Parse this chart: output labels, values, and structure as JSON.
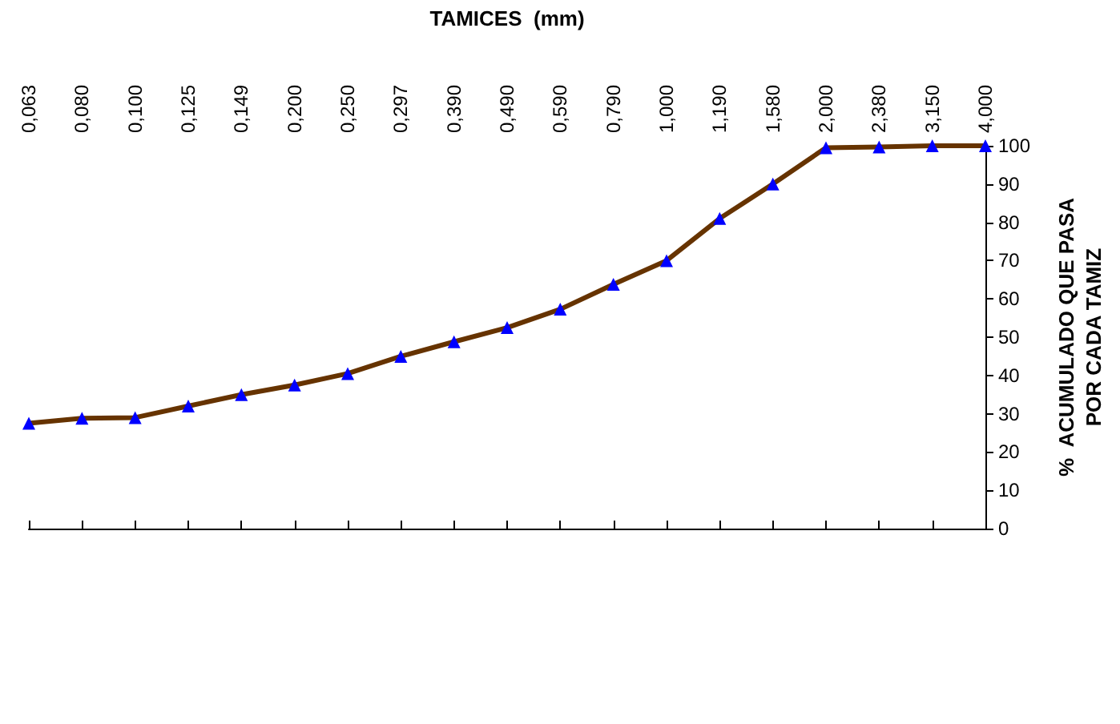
{
  "chart_data": {
    "type": "line",
    "xlabel": "TAMICES  (mm)",
    "ylabel": "%  ACUMULADO QUE PASA\nPOR CADA TAMIZ",
    "categories": [
      "0,063",
      "0,080",
      "0,100",
      "0,125",
      "0,149",
      "0,200",
      "0,250",
      "0,297",
      "0,390",
      "0,490",
      "0,590",
      "0,790",
      "1,000",
      "1,190",
      "1,580",
      "2,000",
      "2,380",
      "3,150",
      "4,000"
    ],
    "series": [
      {
        "color": "#663300",
        "values": [
          27.5,
          28.8,
          29,
          32,
          35,
          37.5,
          40.5,
          45,
          48.8,
          52.5,
          57.3,
          63.8,
          70,
          81,
          90,
          99.5,
          99.7,
          100,
          100
        ]
      }
    ],
    "ylim": [
      0,
      100
    ],
    "yticks": [
      0,
      10,
      20,
      30,
      40,
      50,
      60,
      70,
      80,
      90,
      100
    ],
    "grid": false,
    "marker": "triangle",
    "line_style": "solid"
  }
}
